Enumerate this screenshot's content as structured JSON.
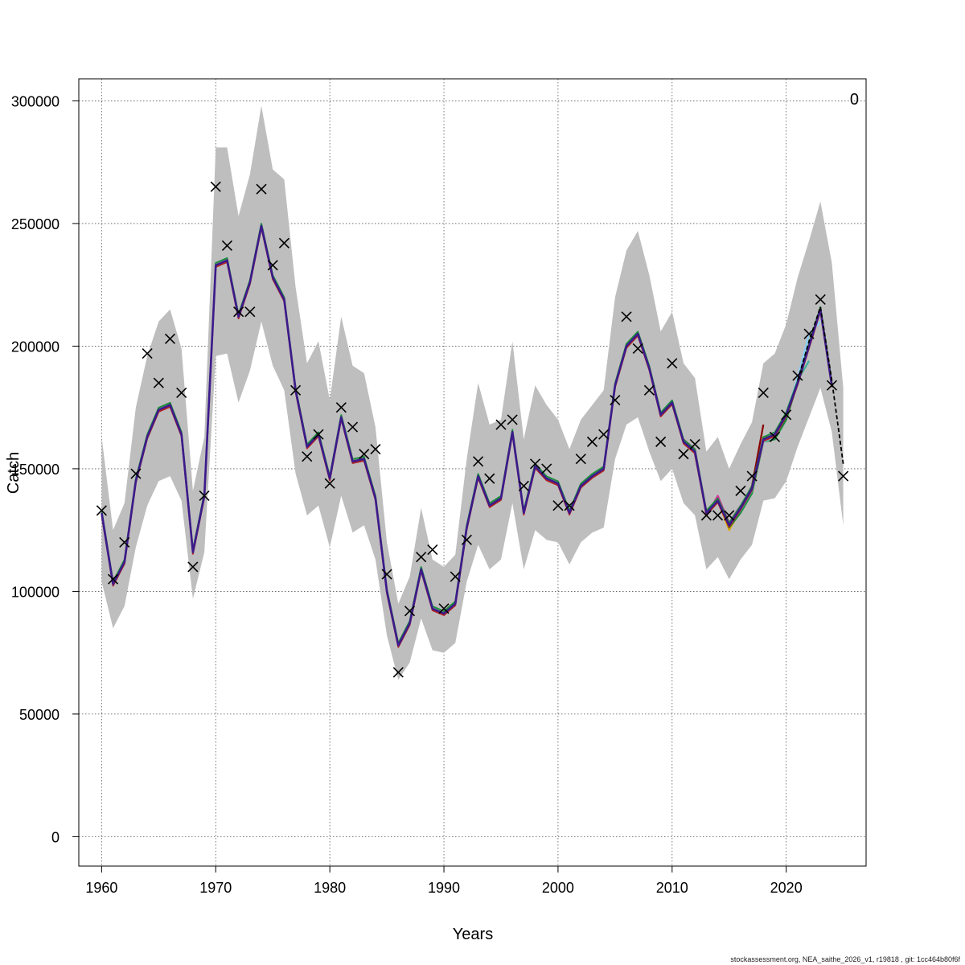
{
  "chart_data": {
    "type": "line",
    "title": "",
    "xlabel": "Years",
    "ylabel": "Catch",
    "xlim": [
      1958,
      2027
    ],
    "ylim": [
      -12000,
      309000
    ],
    "x_ticks": [
      1960,
      1970,
      1980,
      1990,
      2000,
      2010,
      2020
    ],
    "y_ticks": [
      0,
      50000,
      100000,
      150000,
      200000,
      250000,
      300000
    ],
    "grid": true,
    "legend": "none",
    "corner_label": "0",
    "footer": "stockassessment.org, NEA_saithe_2026_v1, r19818 , git: 1cc464b80f6f",
    "colors": {
      "band": "#bebebe",
      "fit": "#3c1a8c",
      "observed": "#000000",
      "forecast": "#000000"
    },
    "observed": {
      "x": [
        1960,
        1961,
        1962,
        1963,
        1964,
        1965,
        1966,
        1967,
        1968,
        1969,
        1970,
        1971,
        1972,
        1973,
        1974,
        1975,
        1976,
        1977,
        1978,
        1979,
        1980,
        1981,
        1982,
        1983,
        1984,
        1985,
        1986,
        1987,
        1988,
        1989,
        1990,
        1991,
        1992,
        1993,
        1994,
        1995,
        1996,
        1997,
        1998,
        1999,
        2000,
        2001,
        2002,
        2003,
        2004,
        2005,
        2006,
        2007,
        2008,
        2009,
        2010,
        2011,
        2012,
        2013,
        2014,
        2015,
        2016,
        2017,
        2018,
        2019,
        2020,
        2021,
        2022,
        2023,
        2024,
        2025
      ],
      "y": [
        133000,
        105000,
        120000,
        148000,
        197000,
        185000,
        203000,
        181000,
        110000,
        139000,
        265000,
        241000,
        214000,
        214000,
        264000,
        233000,
        242000,
        182000,
        155000,
        164000,
        144000,
        175000,
        167000,
        156000,
        158000,
        107000,
        67000,
        92000,
        114000,
        117000,
        93000,
        106000,
        121000,
        153000,
        146000,
        168000,
        170000,
        143000,
        152000,
        150000,
        135000,
        135000,
        154000,
        161000,
        164000,
        178000,
        212000,
        199000,
        182000,
        161000,
        193000,
        156000,
        160000,
        131000,
        131000,
        131000,
        141000,
        147000,
        181000,
        163000,
        172000,
        188000,
        205000,
        219000,
        184000,
        147000
      ]
    },
    "fit": {
      "x": [
        1960,
        1961,
        1962,
        1963,
        1964,
        1965,
        1966,
        1967,
        1968,
        1969,
        1970,
        1971,
        1972,
        1973,
        1974,
        1975,
        1976,
        1977,
        1978,
        1979,
        1980,
        1981,
        1982,
        1983,
        1984,
        1985,
        1986,
        1987,
        1988,
        1989,
        1990,
        1991,
        1992,
        1993,
        1994,
        1995,
        1996,
        1997,
        1998,
        1999,
        2000,
        2001,
        2002,
        2003,
        2004,
        2005,
        2006,
        2007,
        2008,
        2009,
        2010,
        2011,
        2012,
        2013,
        2014,
        2015,
        2016,
        2017,
        2018,
        2019,
        2020,
        2021,
        2022,
        2023,
        2024
      ],
      "y": [
        132000,
        103000,
        112000,
        145000,
        163000,
        174000,
        176000,
        164000,
        116000,
        139000,
        233000,
        235000,
        212000,
        226000,
        249000,
        228000,
        219000,
        182000,
        159000,
        164000,
        146000,
        171000,
        153000,
        154000,
        138000,
        100000,
        78000,
        87000,
        109000,
        93000,
        91000,
        95000,
        126000,
        147000,
        135000,
        138000,
        165000,
        132000,
        151000,
        146000,
        144000,
        132000,
        143000,
        147000,
        150000,
        184000,
        200000,
        205000,
        191000,
        172000,
        177000,
        161000,
        157000,
        132000,
        137000,
        127000,
        134000,
        142000,
        162000,
        164000,
        172000,
        185000,
        200000,
        215000,
        184000
      ]
    },
    "ci_upper": [
      163000,
      125000,
      136000,
      175000,
      196000,
      210000,
      215000,
      199000,
      141000,
      163000,
      281000,
      281000,
      253000,
      270000,
      298000,
      272000,
      268000,
      224000,
      193000,
      202000,
      178000,
      212000,
      192000,
      189000,
      167000,
      120000,
      95000,
      106000,
      134000,
      113000,
      110000,
      115000,
      154000,
      185000,
      168000,
      170000,
      202000,
      162000,
      184000,
      176000,
      170000,
      158000,
      170000,
      176000,
      182000,
      220000,
      239000,
      247000,
      229000,
      206000,
      214000,
      193000,
      187000,
      157000,
      163000,
      150000,
      160000,
      169000,
      193000,
      197000,
      209000,
      228000,
      243000,
      259000,
      234000,
      183000
    ],
    "ci_lower": [
      104000,
      85000,
      94000,
      118000,
      135000,
      145000,
      147000,
      137000,
      97000,
      116000,
      196000,
      197000,
      177000,
      190000,
      210000,
      192000,
      182000,
      148000,
      131000,
      135000,
      118000,
      139000,
      124000,
      127000,
      113000,
      82000,
      64000,
      71000,
      89000,
      76000,
      75000,
      79000,
      104000,
      119000,
      109000,
      113000,
      136000,
      109000,
      125000,
      121000,
      120000,
      111000,
      120000,
      124000,
      126000,
      154000,
      168000,
      171000,
      157000,
      145000,
      150000,
      136000,
      131000,
      109000,
      114000,
      105000,
      113000,
      119000,
      137000,
      138000,
      145000,
      159000,
      171000,
      183000,
      165000,
      127000
    ],
    "retro_series": [
      {
        "color": "#8b0000",
        "x": [
          2012,
          2013,
          2014,
          2015,
          2016,
          2017,
          2018
        ],
        "y": [
          156000,
          132000,
          137000,
          127000,
          134000,
          143000,
          168000
        ]
      },
      {
        "color": "#e6a800",
        "x": [
          2013,
          2014,
          2015,
          2016,
          2017,
          2018,
          2019
        ],
        "y": [
          133000,
          137000,
          125000,
          133000,
          140000,
          163000,
          163000
        ]
      },
      {
        "color": "#1a8c3c",
        "x": [
          2014,
          2015,
          2016,
          2017,
          2018,
          2019,
          2020,
          2021
        ],
        "y": [
          138000,
          126000,
          132000,
          140000,
          161000,
          162000,
          170000,
          185000
        ]
      },
      {
        "color": "#3cb3a0",
        "x": [
          2015,
          2016,
          2017,
          2018,
          2019,
          2020,
          2021,
          2022
        ],
        "y": [
          127000,
          133000,
          141000,
          162000,
          164000,
          173000,
          186000,
          194000
        ]
      },
      {
        "color": "#87cefa",
        "x": [
          2016,
          2017,
          2018,
          2019,
          2020,
          2021,
          2022,
          2023
        ],
        "y": [
          134000,
          142000,
          161000,
          163000,
          172000,
          187000,
          205000,
          210000
        ]
      },
      {
        "color": "#cc3399",
        "x": [
          2011,
          2012,
          2013,
          2014,
          2015,
          2016
        ],
        "y": [
          162000,
          158000,
          131000,
          139000,
          128000,
          135000
        ]
      }
    ],
    "forecast": {
      "x": [
        2021,
        2022,
        2023,
        2024,
        2025
      ],
      "y": [
        186000,
        202000,
        216000,
        186000,
        152000
      ]
    }
  }
}
